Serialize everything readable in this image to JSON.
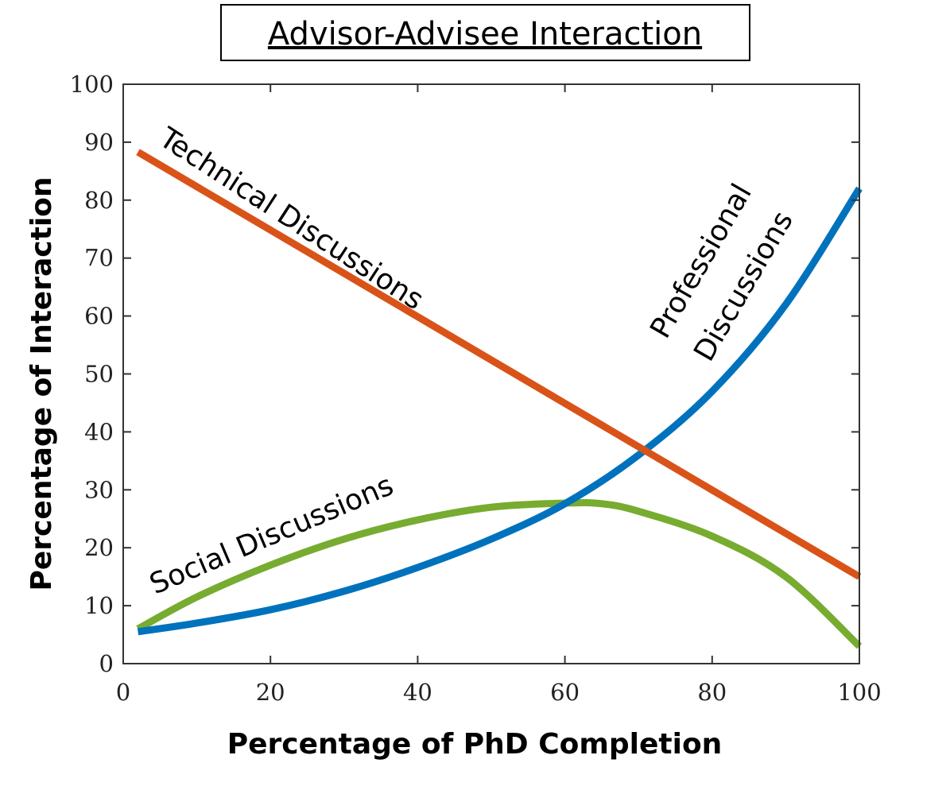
{
  "chart_data": {
    "type": "line",
    "title": "Advisor-Advisee Interaction",
    "xlabel": "Percentage of PhD Completion",
    "ylabel": "Percentage of Interaction",
    "xlim": [
      0,
      100
    ],
    "ylim": [
      0,
      100
    ],
    "xticks": [
      0,
      20,
      40,
      60,
      80,
      100
    ],
    "yticks": [
      0,
      10,
      20,
      30,
      40,
      50,
      60,
      70,
      80,
      90,
      100
    ],
    "grid": false,
    "legend": "none",
    "series": [
      {
        "name": "Technical Discussions",
        "color": "#D95319",
        "x": [
          2,
          100
        ],
        "y": [
          88.3,
          15.0
        ]
      },
      {
        "name": "Professional Discussions",
        "color": "#0072BD",
        "x": [
          2,
          10,
          20,
          30,
          40,
          50,
          60,
          70,
          80,
          90,
          100
        ],
        "y": [
          5.5,
          7.0,
          9.3,
          12.5,
          16.6,
          21.5,
          27.6,
          36.0,
          47.0,
          62.0,
          82.0
        ]
      },
      {
        "name": "Social Discussions",
        "color": "#77AC30",
        "x": [
          2,
          10,
          20,
          30,
          40,
          50,
          60,
          65,
          70,
          80,
          90,
          100
        ],
        "y": [
          6.0,
          11.5,
          17.0,
          21.5,
          24.8,
          27.0,
          27.7,
          27.6,
          26.3,
          22.0,
          15.0,
          3.0
        ]
      }
    ]
  }
}
